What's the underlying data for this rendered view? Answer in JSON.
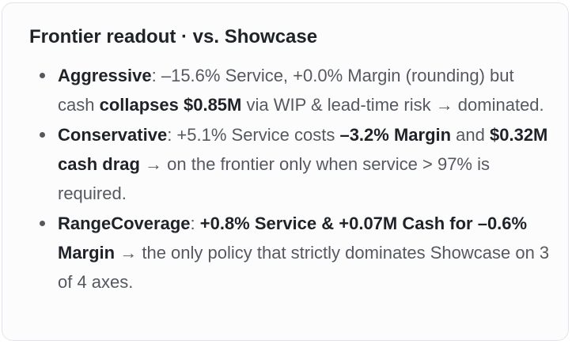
{
  "title": "Frontier readout · vs. Showcase",
  "items": [
    {
      "segments": [
        {
          "text": "Aggressive",
          "bold": true
        },
        {
          "text": ": –15.6% Service, +0.0% Margin (rounding) but cash ",
          "bold": false
        },
        {
          "text": "collapses $0.85M",
          "bold": true
        },
        {
          "text": " via WIP & lead-time risk → dominated.",
          "bold": false
        }
      ]
    },
    {
      "segments": [
        {
          "text": "Conservative",
          "bold": true
        },
        {
          "text": ": +5.1% Service costs ",
          "bold": false
        },
        {
          "text": "–3.2% Margin",
          "bold": true
        },
        {
          "text": " and ",
          "bold": false
        },
        {
          "text": "$0.32M cash drag",
          "bold": true
        },
        {
          "text": " → on the frontier only when service > 97% is required.",
          "bold": false
        }
      ]
    },
    {
      "segments": [
        {
          "text": "RangeCoverage",
          "bold": true
        },
        {
          "text": ": ",
          "bold": false
        },
        {
          "text": "+0.8% Service & +0.07M Cash for –0.6% Margin",
          "bold": true
        },
        {
          "text": " → the only policy that strictly dominates Showcase on 3 of 4 axes.",
          "bold": false
        }
      ]
    }
  ]
}
